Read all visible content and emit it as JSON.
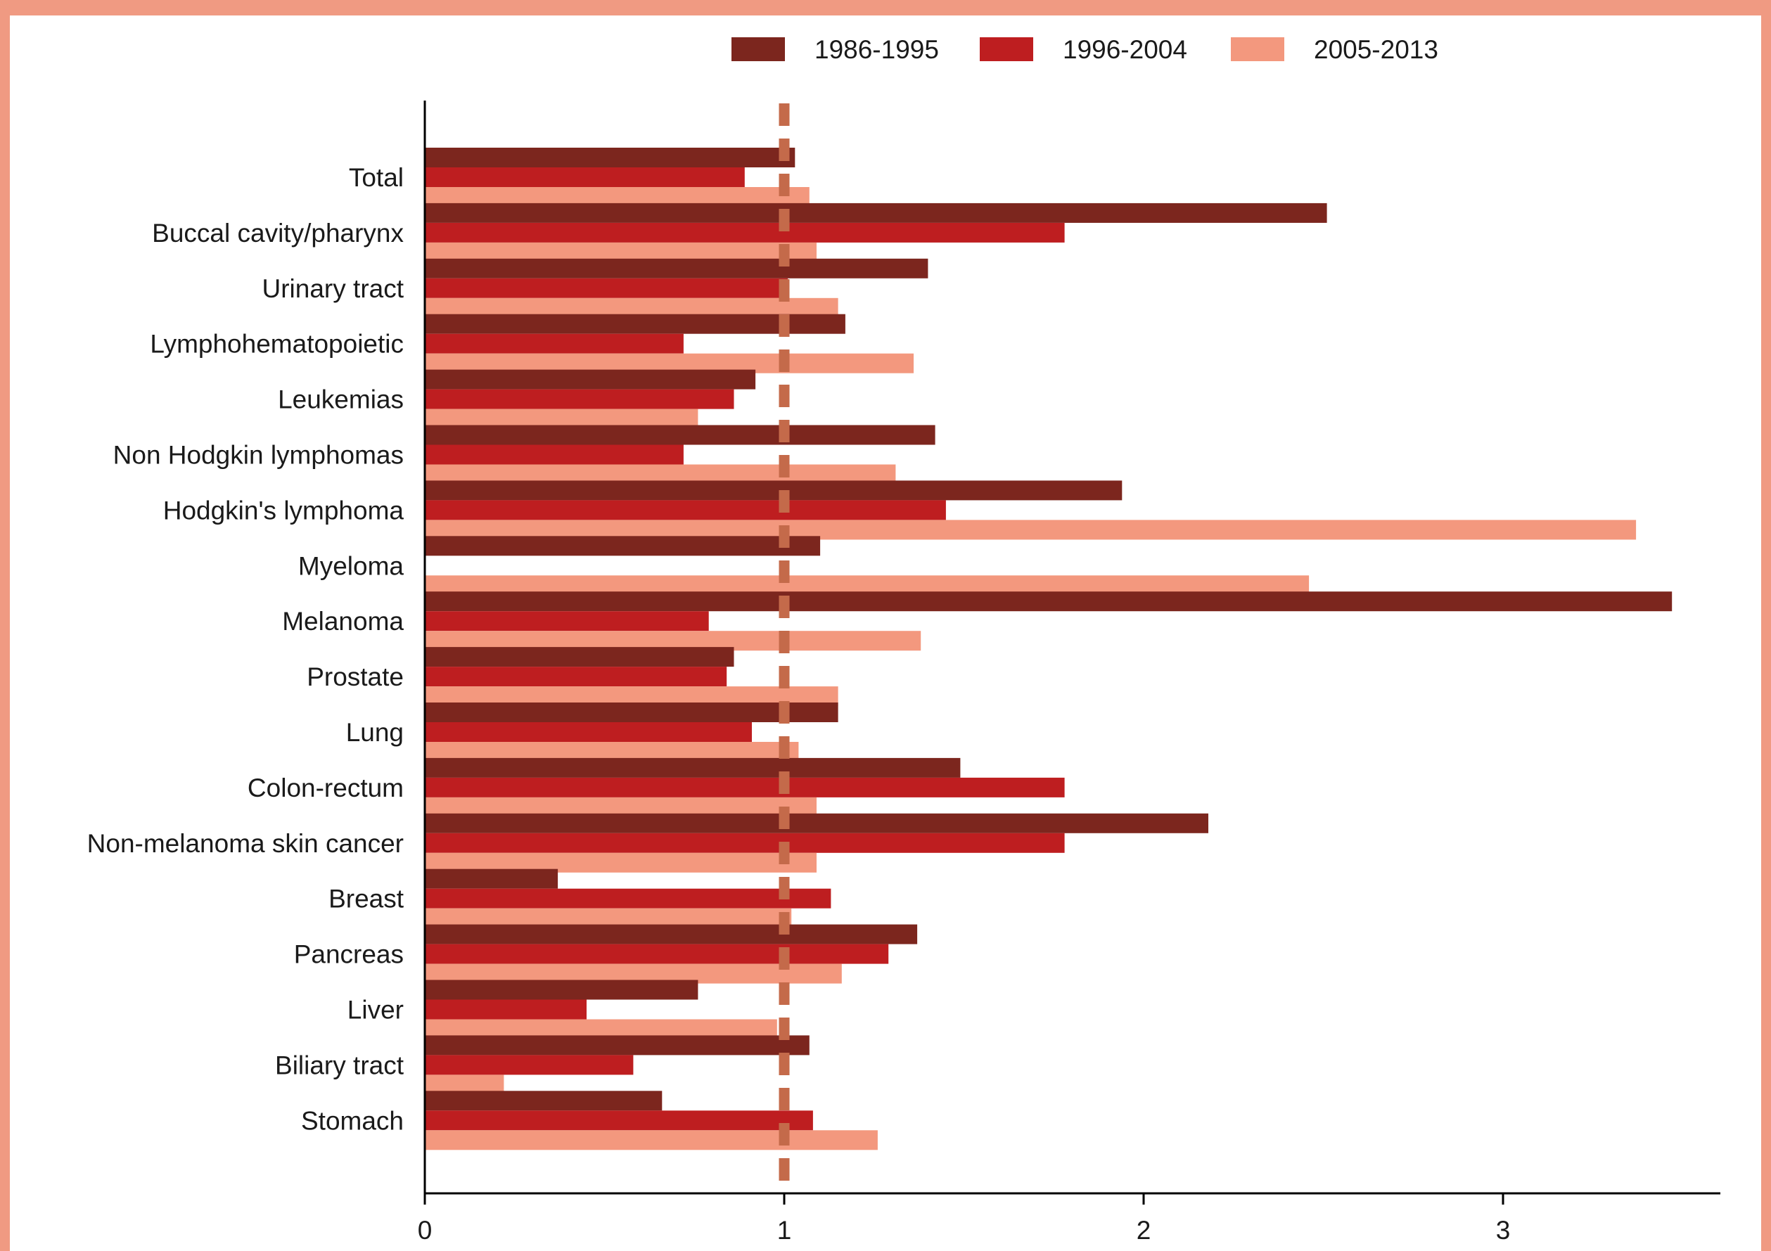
{
  "chart_data": {
    "type": "bar",
    "orientation": "horizontal",
    "title": "",
    "xlabel": "",
    "ylabel": "",
    "xlim": [
      0,
      3.6
    ],
    "xticks": [
      "0",
      "1",
      "2",
      "3"
    ],
    "grid": false,
    "legend_position": "top-center",
    "reference_line": 1.0,
    "categories": [
      "Total",
      "Buccal cavity/pharynx",
      "Urinary tract",
      "Lymphohematopoietic",
      "Leukemias",
      "Non Hodgkin lymphomas",
      "Hodgkin's lymphoma",
      "Myeloma",
      "Melanoma",
      "Prostate",
      "Lung",
      "Colon-rectum",
      "Non-melanoma skin cancer",
      "Breast",
      "Pancreas",
      "Liver",
      "Biliary tract",
      "Stomach"
    ],
    "series": [
      {
        "name": "1986-1995",
        "color": "#7C261E",
        "values": [
          1.03,
          2.51,
          1.4,
          1.17,
          0.92,
          1.42,
          1.94,
          1.1,
          3.47,
          0.86,
          1.15,
          1.49,
          2.18,
          0.37,
          1.37,
          0.76,
          1.07,
          0.66
        ]
      },
      {
        "name": "1996-2004",
        "color": "#BE1E20",
        "values": [
          0.89,
          1.78,
          1.01,
          0.72,
          0.86,
          0.72,
          1.45,
          0.0,
          0.79,
          0.84,
          0.91,
          1.78,
          1.78,
          1.13,
          1.29,
          0.45,
          0.58,
          1.08
        ]
      },
      {
        "name": "2005-2013",
        "color": "#F3987E",
        "values": [
          1.07,
          1.09,
          1.15,
          1.36,
          0.76,
          1.31,
          3.37,
          2.46,
          1.38,
          1.15,
          1.04,
          1.09,
          1.09,
          1.02,
          1.16,
          0.98,
          0.22,
          1.26
        ]
      }
    ],
    "colors": {
      "frame": "#F09A82",
      "reference_line": "#C46A4A",
      "axis": "#000000"
    }
  }
}
